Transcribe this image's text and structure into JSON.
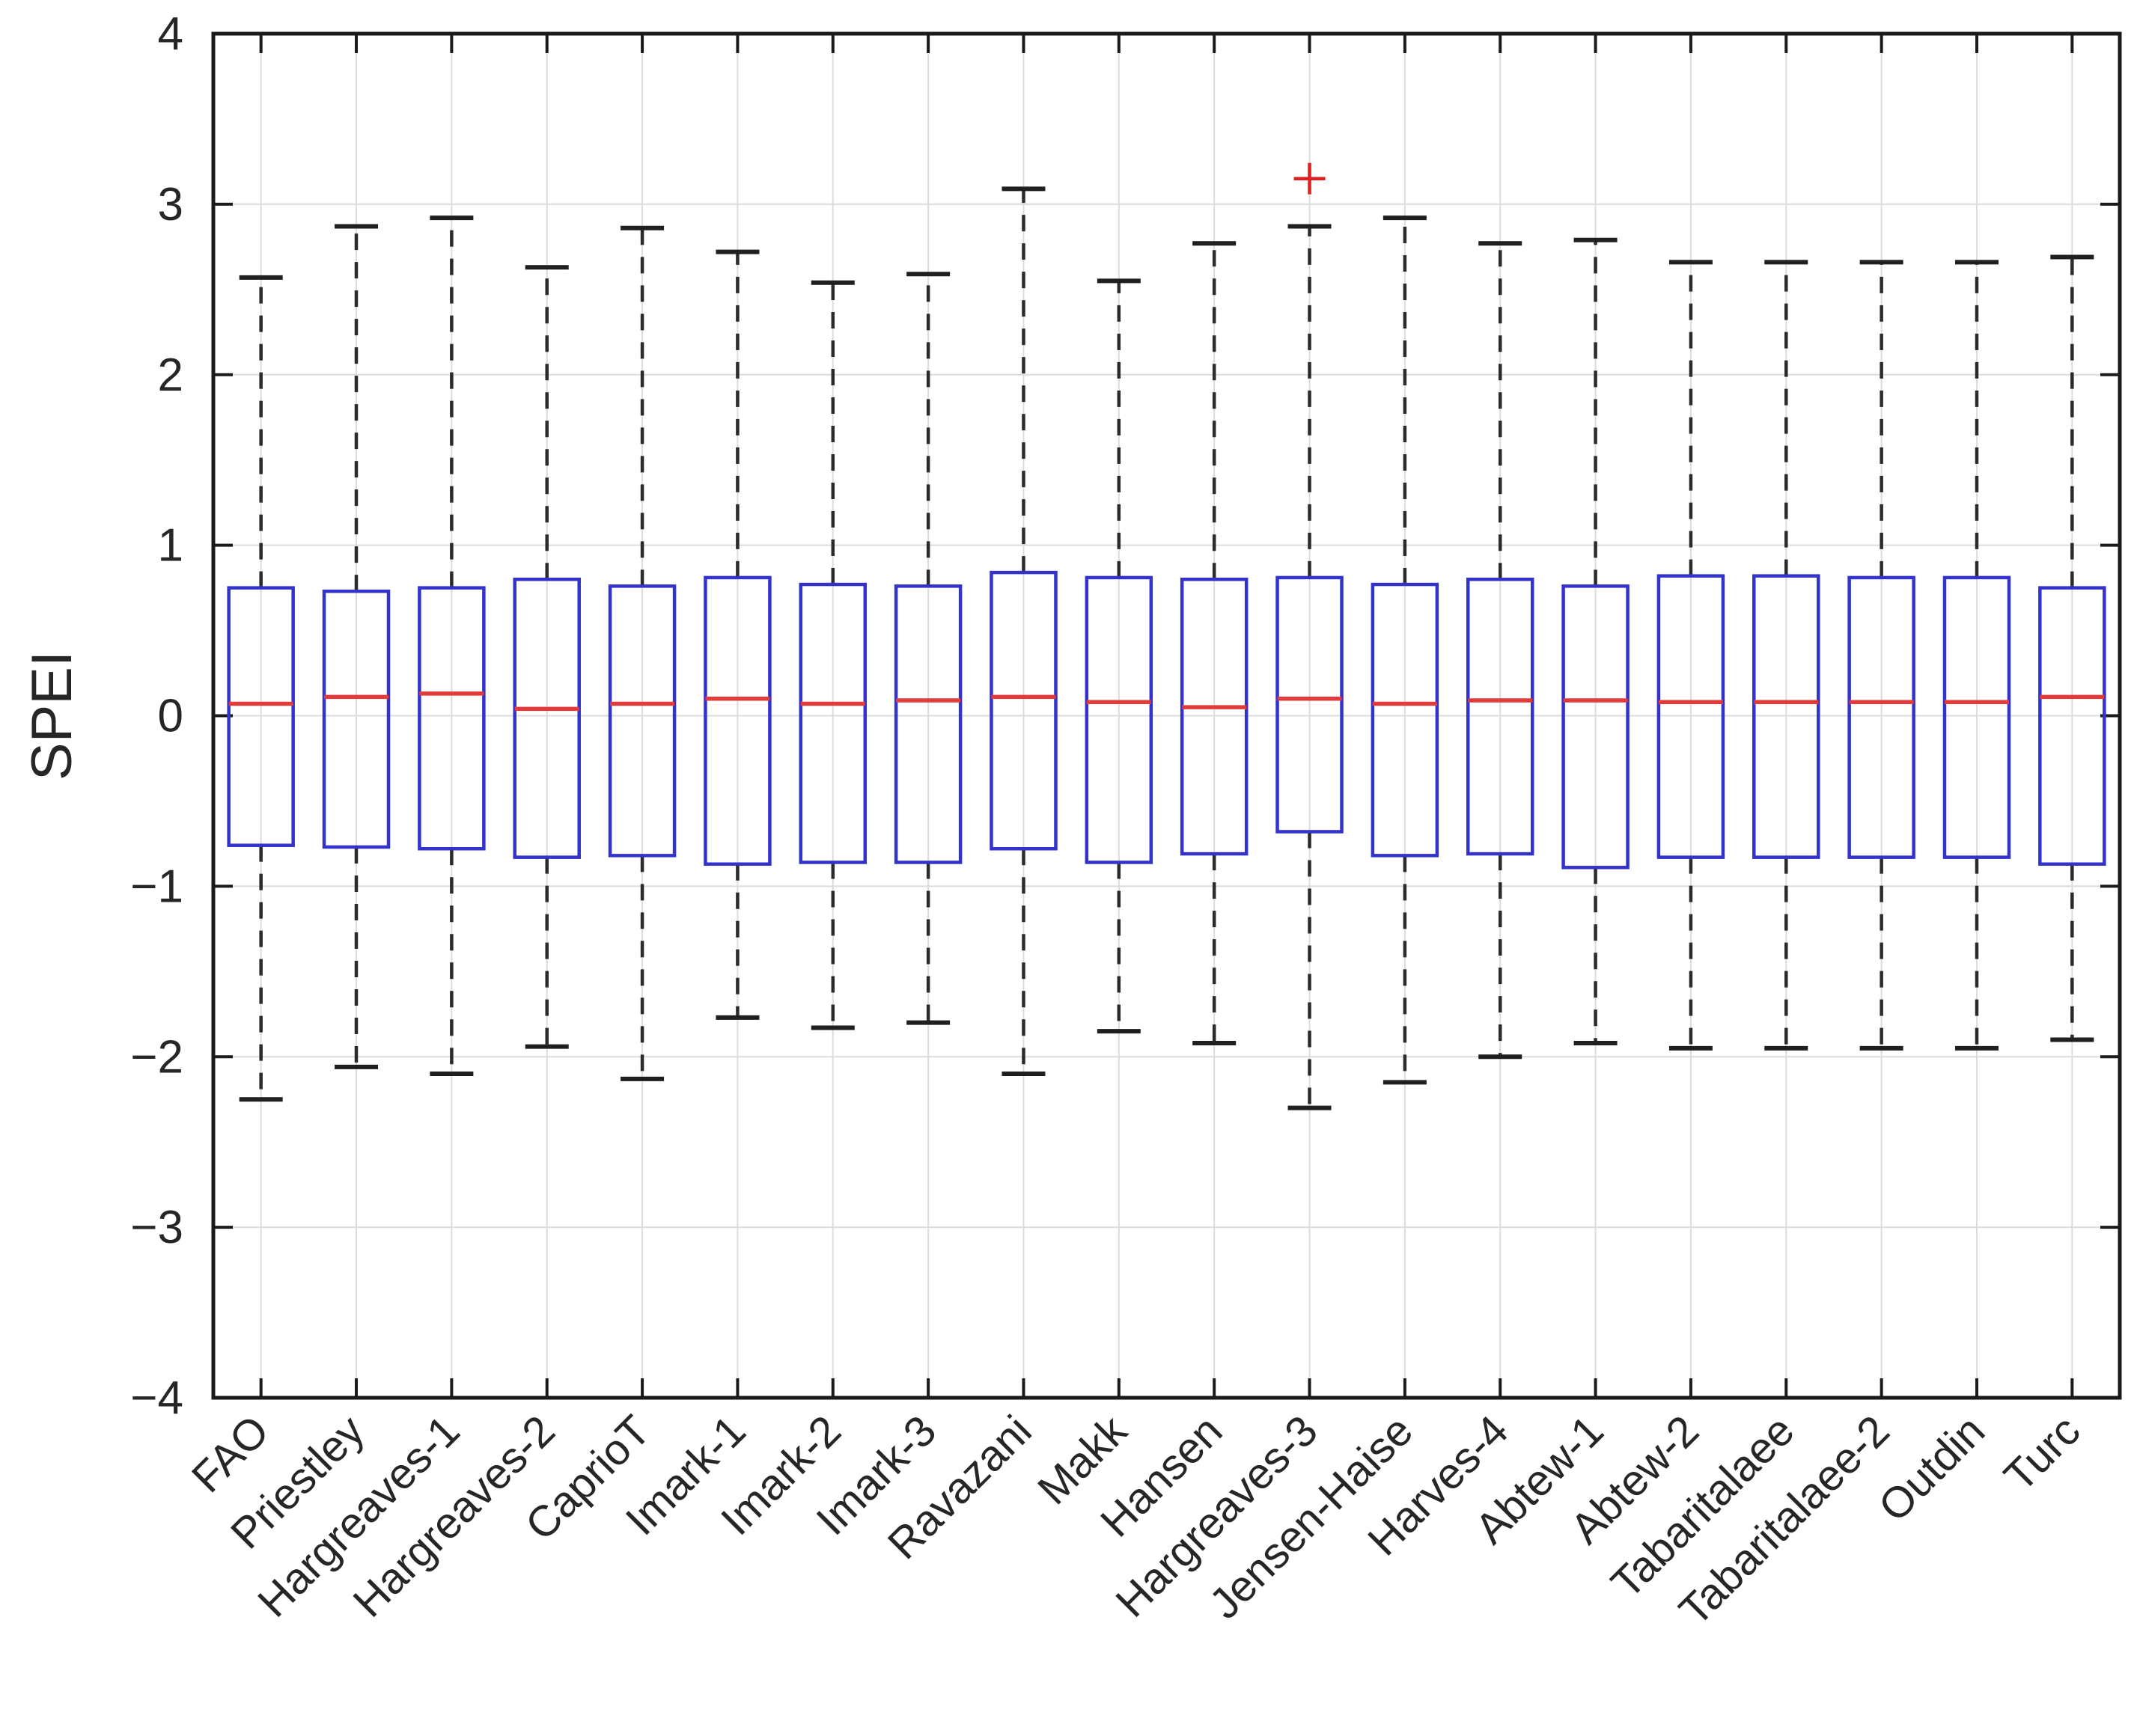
{
  "figure": {
    "background": "#ffffff"
  },
  "colors": {
    "box_edge": "#3333cc",
    "median": "#e23b3b",
    "whisker": "#2b2b2b",
    "cap": "#1f1f1f",
    "outlier": "#e02020",
    "grid": "#dcdcdc",
    "axis": "#1a1a1a",
    "text": "#262626"
  },
  "chart_data": {
    "type": "boxplot",
    "title": "",
    "xlabel": "",
    "ylabel": "SPEI",
    "ylim": [
      -4,
      4
    ],
    "yticks": [
      -4,
      -3,
      -2,
      -1,
      0,
      1,
      2,
      3,
      4
    ],
    "ytick_labels": [
      "−4",
      "−3",
      "−2",
      "−1",
      "0",
      "1",
      "2",
      "3",
      "4"
    ],
    "grid": true,
    "legend_position": "none",
    "x_label_rotation_deg": 45,
    "boxes": [
      {
        "label": "FAO",
        "low": -2.25,
        "q1": -0.76,
        "median": 0.07,
        "q3": 0.75,
        "high": 2.57,
        "outliers": []
      },
      {
        "label": "Priestley",
        "low": -2.06,
        "q1": -0.77,
        "median": 0.11,
        "q3": 0.73,
        "high": 2.87,
        "outliers": []
      },
      {
        "label": "Hargreaves-1",
        "low": -2.1,
        "q1": -0.78,
        "median": 0.13,
        "q3": 0.75,
        "high": 2.92,
        "outliers": []
      },
      {
        "label": "Hargreaves-2",
        "low": -1.94,
        "q1": -0.83,
        "median": 0.04,
        "q3": 0.8,
        "high": 2.63,
        "outliers": []
      },
      {
        "label": "CaprioT",
        "low": -2.13,
        "q1": -0.82,
        "median": 0.07,
        "q3": 0.76,
        "high": 2.86,
        "outliers": []
      },
      {
        "label": "Imark-1",
        "low": -1.77,
        "q1": -0.87,
        "median": 0.1,
        "q3": 0.81,
        "high": 2.72,
        "outliers": []
      },
      {
        "label": "Imark-2",
        "low": -1.83,
        "q1": -0.86,
        "median": 0.07,
        "q3": 0.77,
        "high": 2.54,
        "outliers": []
      },
      {
        "label": "Imark-3",
        "low": -1.8,
        "q1": -0.86,
        "median": 0.09,
        "q3": 0.76,
        "high": 2.59,
        "outliers": []
      },
      {
        "label": "Ravazani",
        "low": -2.1,
        "q1": -0.78,
        "median": 0.11,
        "q3": 0.84,
        "high": 3.09,
        "outliers": []
      },
      {
        "label": "Makk",
        "low": -1.85,
        "q1": -0.86,
        "median": 0.08,
        "q3": 0.81,
        "high": 2.55,
        "outliers": []
      },
      {
        "label": "Hansen",
        "low": -1.92,
        "q1": -0.81,
        "median": 0.05,
        "q3": 0.8,
        "high": 2.77,
        "outliers": []
      },
      {
        "label": "Hargreaves-3",
        "low": -2.3,
        "q1": -0.68,
        "median": 0.1,
        "q3": 0.81,
        "high": 2.87,
        "outliers": [
          3.15
        ]
      },
      {
        "label": "Jensen-Haise",
        "low": -2.15,
        "q1": -0.82,
        "median": 0.07,
        "q3": 0.77,
        "high": 2.92,
        "outliers": []
      },
      {
        "label": "Harves-4",
        "low": -2.0,
        "q1": -0.81,
        "median": 0.09,
        "q3": 0.8,
        "high": 2.77,
        "outliers": []
      },
      {
        "label": "Abtew-1",
        "low": -1.92,
        "q1": -0.89,
        "median": 0.09,
        "q3": 0.76,
        "high": 2.79,
        "outliers": []
      },
      {
        "label": "Abtew-2",
        "low": -1.95,
        "q1": -0.83,
        "median": 0.08,
        "q3": 0.82,
        "high": 2.66,
        "outliers": []
      },
      {
        "label": "Tabaritalaee",
        "low": -1.95,
        "q1": -0.83,
        "median": 0.08,
        "q3": 0.82,
        "high": 2.66,
        "outliers": []
      },
      {
        "label": "Tabaritalaee-2",
        "low": -1.95,
        "q1": -0.83,
        "median": 0.08,
        "q3": 0.81,
        "high": 2.66,
        "outliers": []
      },
      {
        "label": "Outdin",
        "low": -1.95,
        "q1": -0.83,
        "median": 0.08,
        "q3": 0.81,
        "high": 2.66,
        "outliers": []
      },
      {
        "label": "Turc",
        "low": -1.9,
        "q1": -0.87,
        "median": 0.11,
        "q3": 0.75,
        "high": 2.69,
        "outliers": []
      }
    ]
  }
}
